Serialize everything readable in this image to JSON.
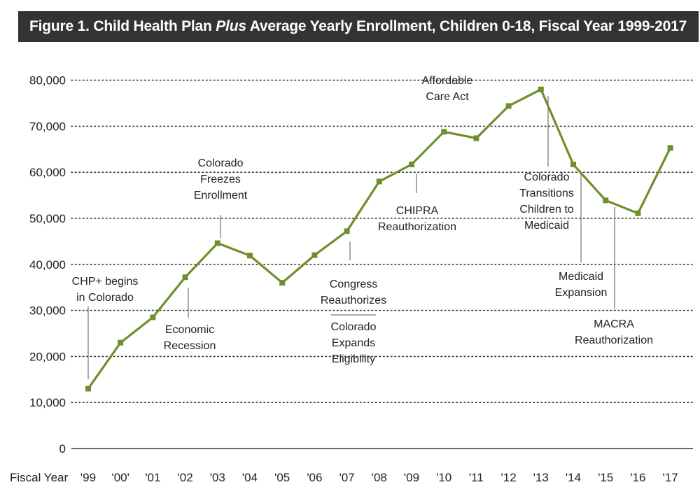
{
  "title": {
    "prefix": "Figure 1. Child Health Plan ",
    "emphasis": "Plus",
    "suffix": " Average Yearly Enrollment, Children 0-18, Fiscal Year 1999-2017"
  },
  "colors": {
    "title_bg": "#333333",
    "title_text": "#ffffff",
    "line": "#6f8f2a",
    "text": "#222222",
    "grid": "#333333"
  },
  "chart_data": {
    "type": "line",
    "x_axis_title": "Fiscal Year",
    "categories": [
      "'99",
      "'00'",
      "'01",
      "'02",
      "'03",
      "'04",
      "'05",
      "'06",
      "'07",
      "'08",
      "'09",
      "'10",
      "'11",
      "'12",
      "'13",
      "'14",
      "'15",
      "'16",
      "'17"
    ],
    "series": [
      {
        "values": [
          13000,
          23000,
          28500,
          37200,
          44600,
          41900,
          36000,
          42000,
          47200,
          58000,
          61700,
          68800,
          67400,
          74400,
          78000,
          61700,
          53900,
          51100,
          65300
        ]
      }
    ],
    "y_ticks": [
      "0",
      "10,000",
      "20,000",
      "30,000",
      "40,000",
      "50,000",
      "60,000",
      "70,000",
      "80,000"
    ],
    "ylim": [
      0,
      80000
    ],
    "grid": true,
    "legend": "none",
    "annotations": [
      {
        "lines": [
          "CHP+ begins",
          "in Colorado"
        ],
        "index": 0
      },
      {
        "lines": [
          "Economic",
          "Recession"
        ],
        "index": 3
      },
      {
        "lines": [
          "Colorado",
          "Freezes",
          "Enrollment"
        ],
        "index": 4
      },
      {
        "lines": [
          "Congress",
          "Reauthorizes"
        ],
        "index": 8
      },
      {
        "lines": [
          "Colorado",
          "Expands",
          "Eligibility"
        ],
        "index": 8
      },
      {
        "lines": [
          "CHIPRA",
          "Reauthorization"
        ],
        "index": 10
      },
      {
        "lines": [
          "Affordable",
          "Care Act"
        ],
        "index": 11
      },
      {
        "lines": [
          "Colorado",
          "Transitions",
          "Children to",
          "Medicaid"
        ],
        "index": 14
      },
      {
        "lines": [
          "Medicaid",
          "Expansion"
        ],
        "index": 15
      },
      {
        "lines": [
          "MACRA",
          "Reauthorization"
        ],
        "index": 16
      }
    ]
  }
}
